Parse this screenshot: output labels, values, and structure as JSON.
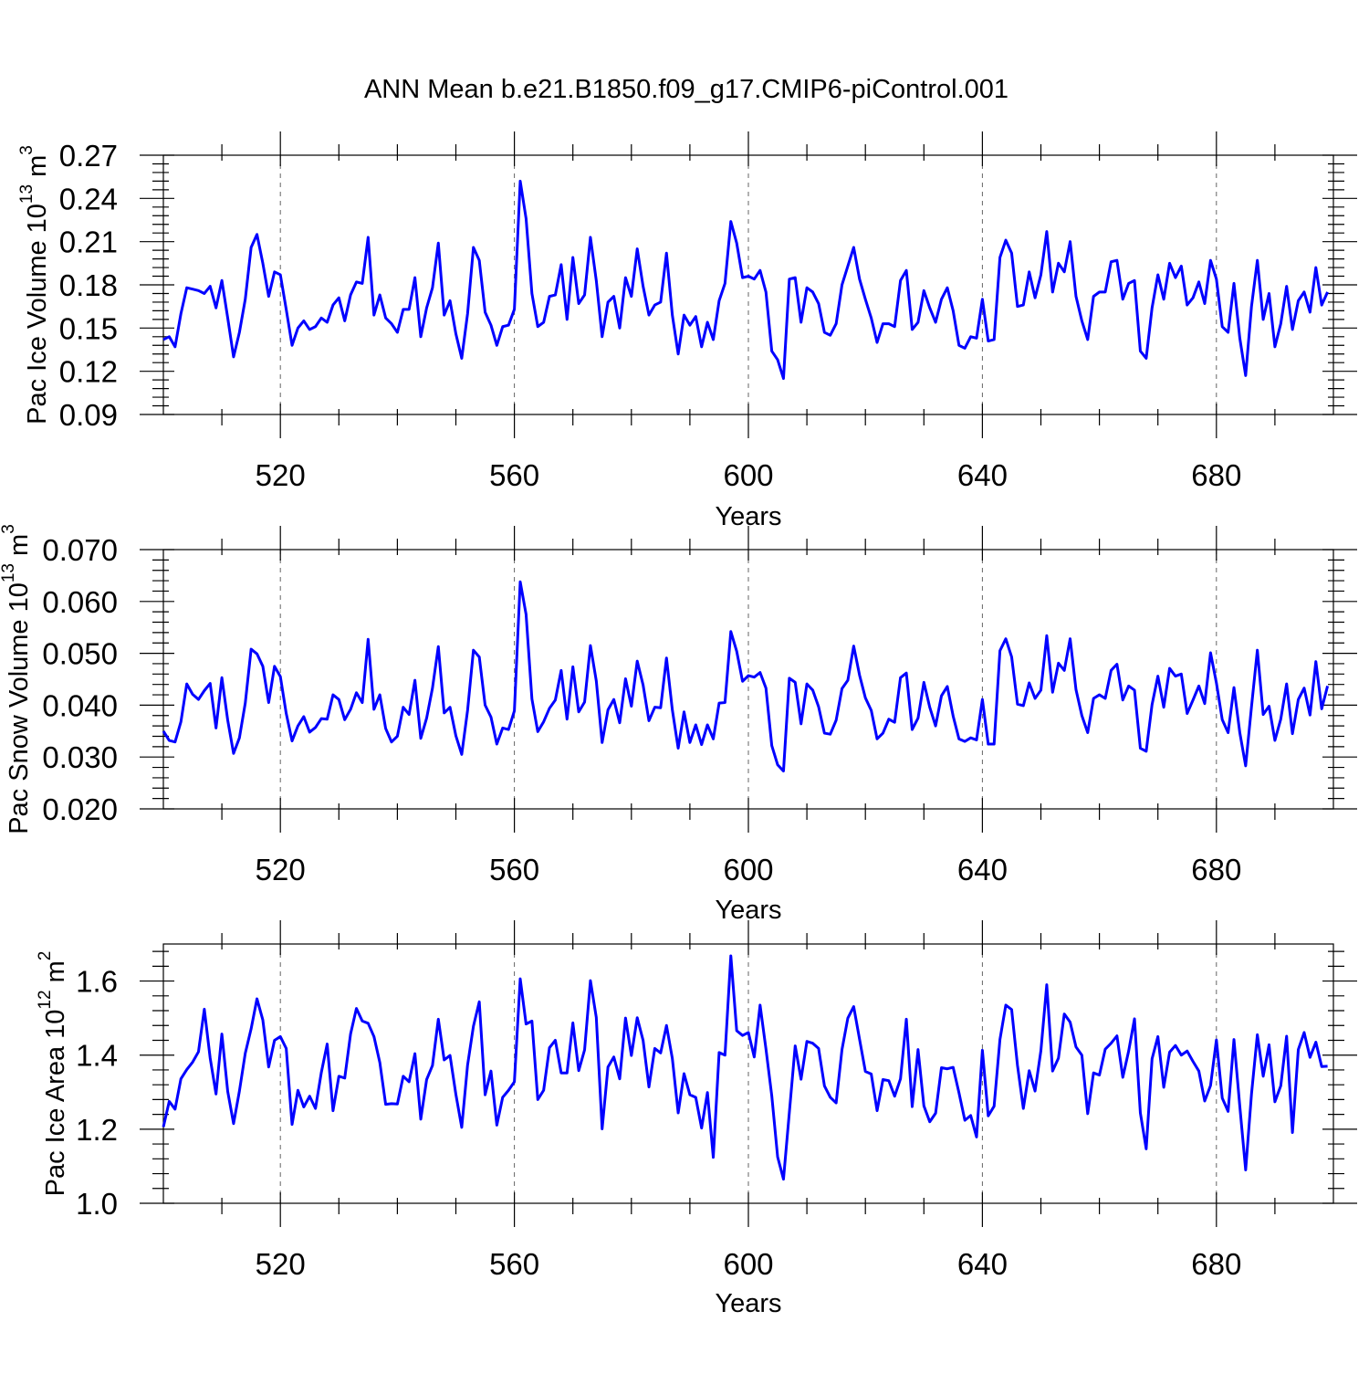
{
  "title": "ANN Mean b.e21.B1850.f09_g17.CMIP6-piControl.001",
  "series_color": "#0000ff",
  "chart_data": [
    {
      "type": "line",
      "name": "pac-ice-volume",
      "ylabel_main": "Pac Ice Volume 10",
      "ylabel_sup": "13",
      "ylabel_unit": " m",
      "ylabel_unit_sup": "3",
      "xlabel": "Years",
      "xlim": [
        500,
        700
      ],
      "ylim": [
        0.09,
        0.27
      ],
      "yticks": [
        0.09,
        0.12,
        0.15,
        0.18,
        0.21,
        0.24,
        0.27
      ],
      "ytick_labels": [
        "0.09",
        "0.12",
        "0.15",
        "0.18",
        "0.21",
        "0.24",
        "0.27"
      ],
      "xticks": [
        520,
        560,
        600,
        640,
        680
      ],
      "xtick_labels": [
        "520",
        "560",
        "600",
        "640",
        "680"
      ],
      "grid_x": [
        520,
        560,
        600,
        640,
        680
      ],
      "x_start": 500,
      "values": [
        0.142,
        0.144,
        0.137,
        0.16,
        0.178,
        0.177,
        0.176,
        0.174,
        0.179,
        0.164,
        0.183,
        0.157,
        0.13,
        0.147,
        0.17,
        0.206,
        0.215,
        0.195,
        0.172,
        0.189,
        0.187,
        0.163,
        0.138,
        0.15,
        0.155,
        0.149,
        0.151,
        0.157,
        0.154,
        0.166,
        0.171,
        0.155,
        0.173,
        0.182,
        0.181,
        0.213,
        0.159,
        0.173,
        0.157,
        0.153,
        0.147,
        0.163,
        0.163,
        0.185,
        0.144,
        0.164,
        0.178,
        0.209,
        0.159,
        0.169,
        0.146,
        0.129,
        0.16,
        0.206,
        0.197,
        0.161,
        0.152,
        0.138,
        0.151,
        0.152,
        0.163,
        0.252,
        0.226,
        0.174,
        0.151,
        0.154,
        0.172,
        0.173,
        0.194,
        0.156,
        0.199,
        0.167,
        0.173,
        0.213,
        0.183,
        0.144,
        0.168,
        0.172,
        0.15,
        0.185,
        0.172,
        0.205,
        0.179,
        0.159,
        0.166,
        0.168,
        0.202,
        0.159,
        0.132,
        0.159,
        0.152,
        0.158,
        0.137,
        0.154,
        0.142,
        0.169,
        0.181,
        0.224,
        0.209,
        0.185,
        0.186,
        0.184,
        0.19,
        0.175,
        0.134,
        0.128,
        0.115,
        0.184,
        0.185,
        0.154,
        0.178,
        0.175,
        0.167,
        0.147,
        0.145,
        0.153,
        0.18,
        0.193,
        0.206,
        0.184,
        0.17,
        0.157,
        0.14,
        0.153,
        0.153,
        0.151,
        0.183,
        0.19,
        0.149,
        0.154,
        0.176,
        0.164,
        0.154,
        0.17,
        0.178,
        0.162,
        0.138,
        0.136,
        0.144,
        0.143,
        0.17,
        0.141,
        0.142,
        0.199,
        0.211,
        0.202,
        0.165,
        0.166,
        0.189,
        0.171,
        0.187,
        0.217,
        0.175,
        0.195,
        0.189,
        0.21,
        0.172,
        0.155,
        0.142,
        0.172,
        0.175,
        0.175,
        0.196,
        0.197,
        0.17,
        0.181,
        0.183,
        0.134,
        0.129,
        0.164,
        0.187,
        0.17,
        0.195,
        0.185,
        0.193,
        0.166,
        0.171,
        0.182,
        0.167,
        0.197,
        0.184,
        0.151,
        0.147,
        0.181,
        0.143,
        0.117,
        0.165,
        0.197,
        0.156,
        0.174,
        0.137,
        0.153,
        0.179,
        0.149,
        0.169,
        0.175,
        0.161,
        0.192,
        0.166,
        0.175
      ]
    },
    {
      "type": "line",
      "name": "pac-snow-volume",
      "ylabel_main": "Pac Snow Volume 10",
      "ylabel_sup": "13",
      "ylabel_unit": " m",
      "ylabel_unit_sup": "3",
      "xlabel": "Years",
      "xlim": [
        500,
        700
      ],
      "ylim": [
        0.02,
        0.07
      ],
      "yticks": [
        0.02,
        0.03,
        0.04,
        0.05,
        0.06,
        0.07
      ],
      "ytick_labels": [
        "0.020",
        "0.030",
        "0.040",
        "0.050",
        "0.060",
        "0.070"
      ],
      "xticks": [
        520,
        560,
        600,
        640,
        680
      ],
      "xtick_labels": [
        "520",
        "560",
        "600",
        "640",
        "680"
      ],
      "grid_x": [
        520,
        560,
        600,
        640,
        680
      ],
      "x_start": 500,
      "values": [
        0.035,
        0.0332,
        0.0329,
        0.0368,
        0.0441,
        0.0421,
        0.0411,
        0.0428,
        0.0442,
        0.0356,
        0.0453,
        0.0371,
        0.0307,
        0.0337,
        0.0404,
        0.0508,
        0.0499,
        0.0475,
        0.0405,
        0.0475,
        0.0455,
        0.0384,
        0.0331,
        0.036,
        0.0378,
        0.0348,
        0.0357,
        0.0374,
        0.0373,
        0.042,
        0.0411,
        0.0372,
        0.0392,
        0.0424,
        0.0405,
        0.0527,
        0.0392,
        0.042,
        0.0355,
        0.0329,
        0.034,
        0.0396,
        0.0382,
        0.0448,
        0.0336,
        0.0375,
        0.0433,
        0.0513,
        0.0385,
        0.0396,
        0.0341,
        0.0305,
        0.039,
        0.0506,
        0.0493,
        0.04,
        0.0377,
        0.0325,
        0.0356,
        0.0353,
        0.0389,
        0.0638,
        0.0575,
        0.0412,
        0.0349,
        0.0368,
        0.0394,
        0.041,
        0.0467,
        0.0373,
        0.0474,
        0.0387,
        0.0406,
        0.0515,
        0.0447,
        0.0328,
        0.0391,
        0.0411,
        0.0366,
        0.0451,
        0.0398,
        0.0485,
        0.0439,
        0.037,
        0.0396,
        0.0395,
        0.0491,
        0.0391,
        0.0317,
        0.0387,
        0.0328,
        0.0362,
        0.0324,
        0.0362,
        0.0335,
        0.0404,
        0.0405,
        0.0542,
        0.0504,
        0.0446,
        0.0457,
        0.0454,
        0.0463,
        0.0433,
        0.0322,
        0.0285,
        0.0273,
        0.0452,
        0.0444,
        0.0364,
        0.0441,
        0.0429,
        0.0397,
        0.0346,
        0.0344,
        0.0371,
        0.0432,
        0.0448,
        0.0514,
        0.0458,
        0.0414,
        0.039,
        0.0335,
        0.0346,
        0.0373,
        0.0367,
        0.0453,
        0.0462,
        0.0353,
        0.0375,
        0.0444,
        0.0396,
        0.036,
        0.0418,
        0.0436,
        0.0379,
        0.0335,
        0.033,
        0.0337,
        0.0333,
        0.0411,
        0.0325,
        0.0325,
        0.0505,
        0.0528,
        0.0493,
        0.0402,
        0.0399,
        0.0443,
        0.0413,
        0.0429,
        0.0534,
        0.0425,
        0.0481,
        0.0467,
        0.0528,
        0.043,
        0.038,
        0.0347,
        0.0413,
        0.042,
        0.0413,
        0.0467,
        0.0479,
        0.041,
        0.0437,
        0.0429,
        0.0317,
        0.0311,
        0.0401,
        0.0456,
        0.0396,
        0.0471,
        0.0456,
        0.046,
        0.0384,
        0.041,
        0.0437,
        0.0403,
        0.0501,
        0.0443,
        0.0372,
        0.0347,
        0.0434,
        0.0347,
        0.0283,
        0.0397,
        0.0506,
        0.0382,
        0.0398,
        0.0332,
        0.0373,
        0.0441,
        0.0345,
        0.0411,
        0.0433,
        0.0381,
        0.0484,
        0.0393,
        0.0437
      ]
    },
    {
      "type": "line",
      "name": "pac-ice-area",
      "ylabel_main": "Pac Ice Area 10",
      "ylabel_sup": "12",
      "ylabel_unit": " m",
      "ylabel_unit_sup": "2",
      "xlabel": "Years",
      "xlim": [
        500,
        700
      ],
      "ylim": [
        1.0,
        1.7
      ],
      "yticks": [
        1.0,
        1.2,
        1.4,
        1.6
      ],
      "ytick_labels": [
        "1.0",
        "1.2",
        "1.4",
        "1.6"
      ],
      "xticks": [
        520,
        560,
        600,
        640,
        680
      ],
      "xtick_labels": [
        "520",
        "560",
        "600",
        "640",
        "680"
      ],
      "grid_x": [
        520,
        560,
        600,
        640,
        680
      ],
      "x_start": 500,
      "values": [
        1.206,
        1.275,
        1.254,
        1.336,
        1.361,
        1.381,
        1.409,
        1.524,
        1.392,
        1.295,
        1.457,
        1.302,
        1.215,
        1.303,
        1.405,
        1.471,
        1.552,
        1.495,
        1.368,
        1.44,
        1.45,
        1.418,
        1.213,
        1.305,
        1.26,
        1.289,
        1.256,
        1.353,
        1.43,
        1.25,
        1.343,
        1.338,
        1.457,
        1.526,
        1.492,
        1.486,
        1.45,
        1.38,
        1.267,
        1.269,
        1.268,
        1.343,
        1.328,
        1.404,
        1.227,
        1.334,
        1.372,
        1.497,
        1.387,
        1.399,
        1.294,
        1.205,
        1.373,
        1.478,
        1.544,
        1.293,
        1.357,
        1.211,
        1.286,
        1.305,
        1.328,
        1.606,
        1.484,
        1.492,
        1.28,
        1.305,
        1.42,
        1.44,
        1.352,
        1.352,
        1.487,
        1.358,
        1.414,
        1.601,
        1.502,
        1.201,
        1.368,
        1.395,
        1.336,
        1.5,
        1.399,
        1.501,
        1.44,
        1.314,
        1.418,
        1.406,
        1.48,
        1.391,
        1.244,
        1.35,
        1.293,
        1.286,
        1.203,
        1.299,
        1.124,
        1.407,
        1.4,
        1.668,
        1.466,
        1.453,
        1.461,
        1.395,
        1.535,
        1.417,
        1.29,
        1.125,
        1.065,
        1.245,
        1.425,
        1.335,
        1.437,
        1.432,
        1.418,
        1.317,
        1.286,
        1.271,
        1.415,
        1.5,
        1.531,
        1.443,
        1.356,
        1.349,
        1.25,
        1.334,
        1.331,
        1.289,
        1.336,
        1.497,
        1.261,
        1.415,
        1.263,
        1.22,
        1.243,
        1.366,
        1.363,
        1.367,
        1.298,
        1.224,
        1.237,
        1.179,
        1.413,
        1.236,
        1.262,
        1.442,
        1.535,
        1.523,
        1.372,
        1.256,
        1.358,
        1.303,
        1.412,
        1.59,
        1.357,
        1.392,
        1.511,
        1.489,
        1.422,
        1.4,
        1.242,
        1.352,
        1.346,
        1.416,
        1.432,
        1.452,
        1.34,
        1.411,
        1.498,
        1.244,
        1.147,
        1.39,
        1.45,
        1.313,
        1.408,
        1.426,
        1.4,
        1.411,
        1.383,
        1.357,
        1.276,
        1.318,
        1.441,
        1.284,
        1.248,
        1.442,
        1.262,
        1.09,
        1.295,
        1.455,
        1.343,
        1.428,
        1.274,
        1.317,
        1.451,
        1.191,
        1.415,
        1.461,
        1.394,
        1.435,
        1.369,
        1.37
      ]
    }
  ]
}
